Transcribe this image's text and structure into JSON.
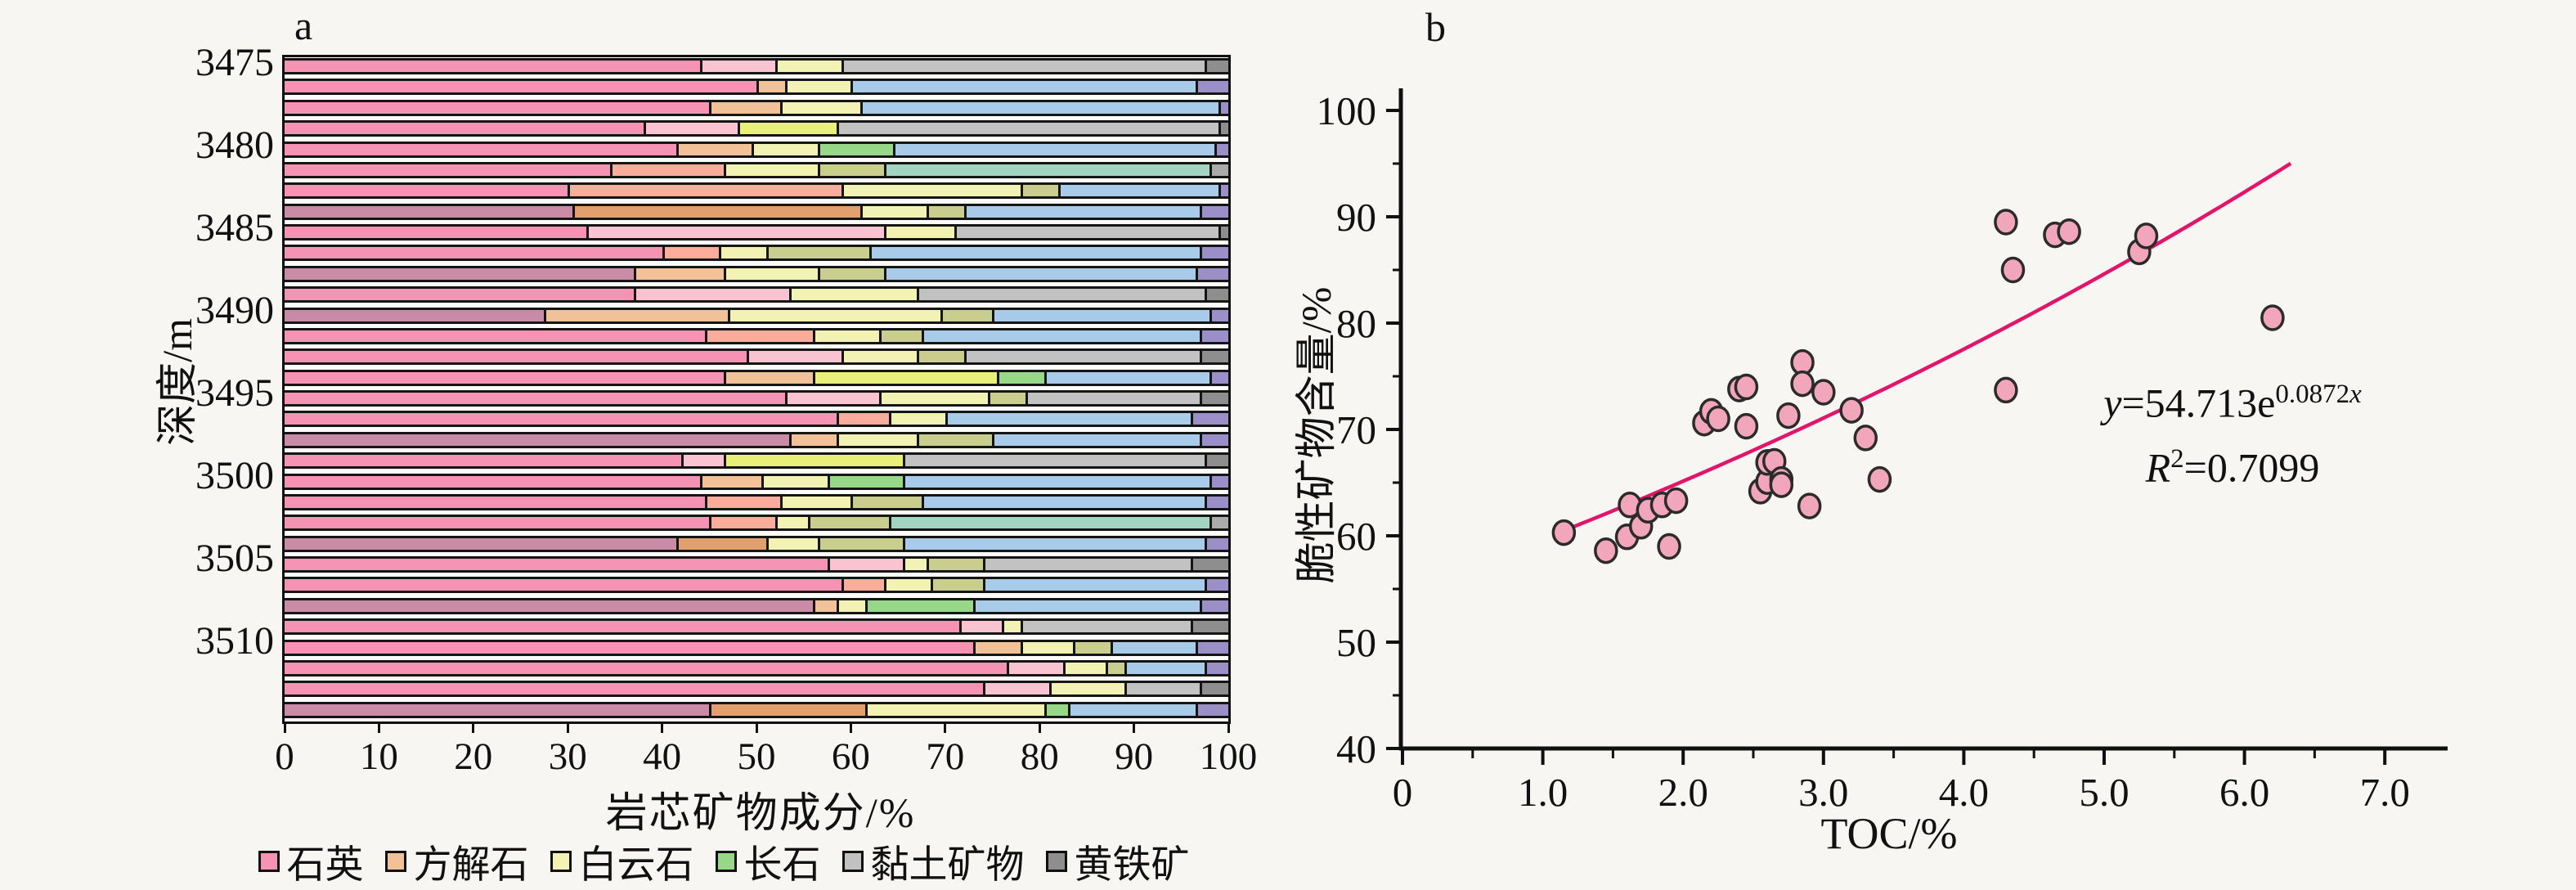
{
  "figure": {
    "panel_a_letter": "a",
    "panel_b_letter": "b"
  },
  "palette": {
    "background": "#f7f6f3",
    "bar_outline": "#151515",
    "quartz": [
      "#F693B4",
      "#C98BA6"
    ],
    "calcite": [
      "#F2C197",
      "#FBAD9B",
      "#F9C3D2",
      "#E2A06F"
    ],
    "dolomite": [
      "#F2F2B5",
      "#E9F077"
    ],
    "feldspar": [
      "#C9CD8E",
      "#96D788"
    ],
    "clay": {
      "A": "#C2C2C2",
      "B": "#A9CBEA",
      "C": "#A2D5C2"
    },
    "pyrite": {
      "A": "#8E8E8E",
      "B": "#9B8FC7",
      "C": "#ABABAB"
    },
    "scatter_fill": "#F2A6BB",
    "scatter_stroke": "#2B2B2B",
    "curve_color": "#E3156B",
    "axis_color": "#101010"
  },
  "chart_data": [
    {
      "type": "bar",
      "orientation": "horizontal-stacked",
      "panel_letter": "a",
      "xlabel": "岩芯矿物成分/%",
      "ylabel": "深度/m",
      "xlim": [
        0,
        100
      ],
      "x_ticks": [
        "0",
        "10",
        "20",
        "30",
        "40",
        "50",
        "60",
        "70",
        "80",
        "90",
        "100"
      ],
      "depth_ticks": [
        "3475",
        "3480",
        "3485",
        "3490",
        "3495",
        "3500",
        "3505",
        "3510"
      ],
      "depth_tick_values": [
        3475,
        3480,
        3485,
        3490,
        3495,
        3500,
        3505,
        3510
      ],
      "depth_range_top": 3474.5,
      "depth_range_bottom": 3515,
      "legend": [
        "石英",
        "方解石",
        "白云石",
        "长石",
        "黏土矿物",
        "黄铁矿"
      ],
      "legend_colors": [
        "#F693B4",
        "#F2C197",
        "#F2F2B5",
        "#96D788",
        "#C2C2C2",
        "#8E8E8E"
      ],
      "series_keys": [
        "quartz",
        "calcite",
        "dolomite",
        "feldspar",
        "clay",
        "pyrite"
      ],
      "bar_format": [
        "quartz%",
        "calcite%",
        "dolomite%",
        "feldspar%",
        "clay%",
        "pyrite%",
        "scheme",
        "quartz_shade",
        "calcite_shade",
        "feldspar_shade",
        "dolomite_shade"
      ],
      "bars": [
        [
          44,
          8,
          7,
          0,
          38.5,
          2.5,
          "A",
          0,
          2,
          0,
          0
        ],
        [
          50,
          3,
          7,
          0,
          36.5,
          3.5,
          "B",
          0,
          0,
          0,
          0
        ],
        [
          45,
          7.5,
          8.5,
          0,
          38,
          1,
          "B",
          0,
          0,
          0,
          0
        ],
        [
          38,
          10,
          10.5,
          0,
          40.5,
          1,
          "A",
          0,
          2,
          0,
          1
        ],
        [
          41.5,
          8,
          7,
          8,
          34,
          1.5,
          "B",
          0,
          0,
          1,
          0
        ],
        [
          34.5,
          12,
          10,
          7,
          34.5,
          2,
          "C",
          0,
          1,
          0,
          0
        ],
        [
          30,
          29,
          19,
          4,
          17,
          1,
          "B",
          0,
          1,
          0,
          0
        ],
        [
          30.5,
          30.5,
          7,
          4,
          25,
          3,
          "B",
          1,
          3,
          0,
          0
        ],
        [
          32,
          31.5,
          7.5,
          0,
          28,
          1,
          "A",
          0,
          2,
          0,
          0
        ],
        [
          40,
          6,
          5,
          11,
          35,
          3,
          "B",
          0,
          1,
          0,
          0
        ],
        [
          37,
          9.5,
          10,
          7,
          33,
          3.5,
          "B",
          1,
          0,
          0,
          0
        ],
        [
          37,
          16.5,
          13.5,
          0,
          30.5,
          2.5,
          "A",
          0,
          2,
          0,
          0
        ],
        [
          27.5,
          19.5,
          22.5,
          5.5,
          23,
          2,
          "B",
          1,
          0,
          0,
          0
        ],
        [
          44.5,
          11.5,
          7,
          4.5,
          29.5,
          3,
          "B",
          0,
          1,
          0,
          0
        ],
        [
          49,
          10,
          8,
          5,
          25,
          3,
          "A",
          0,
          2,
          0,
          0
        ],
        [
          46.5,
          9.5,
          19.5,
          5,
          17.5,
          2,
          "B",
          0,
          0,
          1,
          1
        ],
        [
          53,
          10,
          11.5,
          4,
          18.5,
          3,
          "A",
          0,
          2,
          0,
          0
        ],
        [
          58.5,
          5.5,
          6,
          0,
          26,
          4,
          "B",
          0,
          1,
          0,
          0
        ],
        [
          53.5,
          5,
          8.5,
          8,
          22,
          3,
          "B",
          1,
          0,
          0,
          0
        ],
        [
          42,
          4.5,
          19,
          0,
          32,
          2.5,
          "A",
          0,
          2,
          0,
          1
        ],
        [
          44,
          6.5,
          7,
          8,
          32.5,
          2,
          "B",
          0,
          0,
          1,
          0
        ],
        [
          44.5,
          8,
          7.5,
          7.5,
          30,
          2.5,
          "B",
          0,
          1,
          0,
          0
        ],
        [
          45,
          7,
          3.5,
          8.5,
          34,
          2,
          "C",
          0,
          1,
          0,
          0
        ],
        [
          41.5,
          9.5,
          5.5,
          9,
          32,
          2.5,
          "B",
          1,
          3,
          0,
          0
        ],
        [
          57.5,
          8,
          2.5,
          6,
          22,
          4,
          "A",
          0,
          2,
          0,
          0
        ],
        [
          59,
          4.5,
          5,
          5.5,
          23.5,
          2.5,
          "B",
          0,
          1,
          0,
          0
        ],
        [
          56,
          2.5,
          3,
          11.5,
          24,
          3,
          "B",
          1,
          0,
          1,
          0
        ],
        [
          71.5,
          4.5,
          2,
          0,
          18,
          4,
          "A",
          0,
          2,
          0,
          0
        ],
        [
          73,
          5,
          5.5,
          4,
          9,
          3.5,
          "B",
          0,
          0,
          0,
          0
        ],
        [
          76.5,
          6,
          4.5,
          2,
          8.5,
          2.5,
          "B",
          0,
          2,
          0,
          0
        ],
        [
          74,
          7,
          8,
          0,
          8,
          3,
          "A",
          0,
          2,
          0,
          0
        ],
        [
          45,
          16.5,
          19,
          2.5,
          13.5,
          3.5,
          "B",
          1,
          3,
          1,
          0
        ]
      ]
    },
    {
      "type": "scatter",
      "panel_letter": "b",
      "xlabel": "TOC/%",
      "ylabel": "脆性矿物含量/%",
      "xlim": [
        0,
        7.5
      ],
      "ylim": [
        40,
        102
      ],
      "x_ticks": [
        "0",
        "1.0",
        "2.0",
        "3.0",
        "4.0",
        "5.0",
        "6.0",
        "7.0"
      ],
      "x_tick_values": [
        0,
        1,
        2,
        3,
        4,
        5,
        6,
        7
      ],
      "y_ticks": [
        "40",
        "50",
        "60",
        "70",
        "80",
        "90",
        "100"
      ],
      "y_tick_values": [
        40,
        50,
        60,
        70,
        80,
        90,
        100
      ],
      "points": [
        [
          1.15,
          60.3
        ],
        [
          1.45,
          58.6
        ],
        [
          1.6,
          59.9
        ],
        [
          1.62,
          62.9
        ],
        [
          1.7,
          60.9
        ],
        [
          1.75,
          62.4
        ],
        [
          1.85,
          62.9
        ],
        [
          1.9,
          59.0
        ],
        [
          1.95,
          63.3
        ],
        [
          2.15,
          70.6
        ],
        [
          2.2,
          71.7
        ],
        [
          2.25,
          71.0
        ],
        [
          2.4,
          73.8
        ],
        [
          2.45,
          74.0
        ],
        [
          2.45,
          70.3
        ],
        [
          2.55,
          64.2
        ],
        [
          2.6,
          65.1
        ],
        [
          2.6,
          66.9
        ],
        [
          2.65,
          67.0
        ],
        [
          2.7,
          65.3
        ],
        [
          2.7,
          64.8
        ],
        [
          2.75,
          71.3
        ],
        [
          2.85,
          76.3
        ],
        [
          2.85,
          74.3
        ],
        [
          2.9,
          62.8
        ],
        [
          3.0,
          73.5
        ],
        [
          3.2,
          71.8
        ],
        [
          3.3,
          69.2
        ],
        [
          3.4,
          65.3
        ],
        [
          4.3,
          89.5
        ],
        [
          4.3,
          73.7
        ],
        [
          4.35,
          85.0
        ],
        [
          4.65,
          88.3
        ],
        [
          4.75,
          88.6
        ],
        [
          5.25,
          86.7
        ],
        [
          5.3,
          88.2
        ],
        [
          6.2,
          80.5
        ]
      ],
      "fit": {
        "a": 54.713,
        "b": 0.0872,
        "x_from": 1.08,
        "x_to": 6.33,
        "lhs": "y",
        "body": "=54.713e",
        "exp_coef": "0.0872",
        "exp_var": "x",
        "r": "R",
        "r_sup": "2",
        "r_val": "=0.7099"
      }
    }
  ]
}
